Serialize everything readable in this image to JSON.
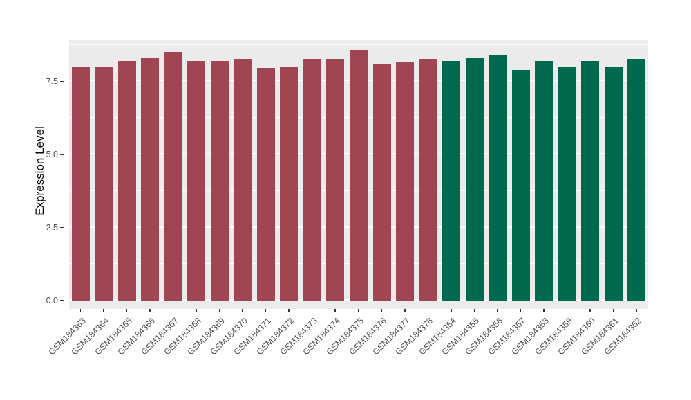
{
  "chart_data": {
    "type": "bar",
    "title": "",
    "xlabel": "",
    "ylabel": "Expression Level",
    "ylim": [
      0,
      9.2
    ],
    "yticks": [
      0,
      2.5,
      5,
      7.5
    ],
    "ytick_labels": [
      "0.0",
      "2.5",
      "5.0",
      "7.5"
    ],
    "grid": "horizontal-major-and-minor",
    "legend": "none",
    "categories": [
      "GSM184363",
      "GSM184364",
      "GSM184365",
      "GSM184366",
      "GSM184367",
      "GSM184368",
      "GSM184369",
      "GSM184370",
      "GSM184371",
      "GSM184372",
      "GSM184373",
      "GSM184374",
      "GSM184375",
      "GSM184376",
      "GSM184377",
      "GSM184378",
      "GSM184354",
      "GSM184355",
      "GSM184356",
      "GSM184357",
      "GSM184358",
      "GSM184359",
      "GSM184360",
      "GSM184361",
      "GSM184362"
    ],
    "values": [
      8.0,
      8.0,
      8.2,
      8.3,
      8.5,
      8.2,
      8.2,
      8.25,
      7.95,
      8.0,
      8.25,
      8.25,
      8.55,
      8.1,
      8.15,
      8.25,
      8.2,
      8.3,
      8.4,
      7.9,
      8.2,
      8.0,
      8.2,
      8.0,
      8.25
    ],
    "bar_colors": [
      "#A04552",
      "#A04552",
      "#A04552",
      "#A04552",
      "#A04552",
      "#A04552",
      "#A04552",
      "#A04552",
      "#A04552",
      "#A04552",
      "#A04552",
      "#A04552",
      "#A04552",
      "#A04552",
      "#A04552",
      "#A04552",
      "#00694E",
      "#00694E",
      "#00694E",
      "#00694E",
      "#00694E",
      "#00694E",
      "#00694E",
      "#00694E",
      "#00694E"
    ],
    "colors": {
      "plot_background": "#EBEBEB",
      "gridline": "#FFFFFF",
      "axis_text": "#4D4D4D",
      "axis_title": "#000000",
      "group1_bar": "#A04552",
      "group2_bar": "#00694E"
    }
  }
}
